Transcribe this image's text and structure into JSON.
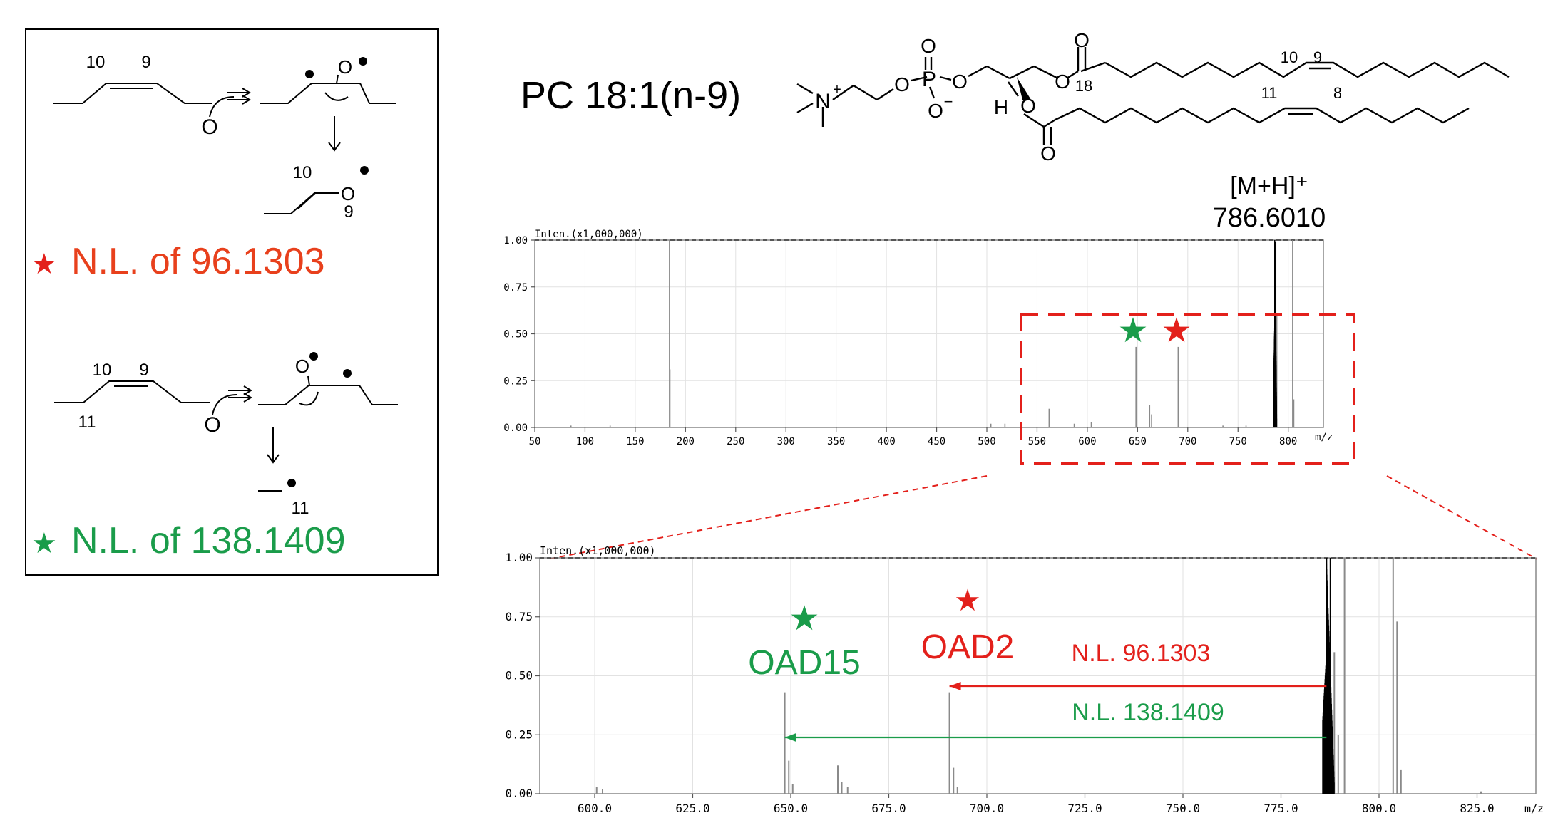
{
  "colors": {
    "red": "#e3201b",
    "orange_red": "#e8401c",
    "green": "#1a9c4a",
    "gray_peak": "#808080",
    "black": "#000000"
  },
  "mechanism_panel": {
    "top_labels": [
      "10",
      "9"
    ],
    "oxygen": "O",
    "product_labels": [
      "10",
      "9"
    ],
    "nl1_star": "★",
    "nl1_text": "N.L. of 96.1303",
    "bottom_labels": [
      "10",
      "9",
      "11"
    ],
    "bottom_product_label": "11",
    "nl2_star": "★",
    "nl2_text": "N.L. of 138.1409"
  },
  "structure": {
    "title": "PC 18:1(n-9)",
    "atom_N": "N",
    "charge_plus": "+",
    "atom_O": "O",
    "atom_P": "P",
    "charge_minus": "−",
    "atom_H": "H",
    "chain_labels": [
      "18",
      "10",
      "9",
      "11",
      "8"
    ]
  },
  "precursor": {
    "label": "[M+H]⁺",
    "mz": "786.6010"
  },
  "annotations": {
    "oad15": "OAD15",
    "oad2": "OAD2",
    "nl_red": "N.L. 96.1303",
    "nl_green": "N.L. 138.1409",
    "star": "★"
  },
  "chart_data": [
    {
      "type": "bar",
      "name": "full-spectrum",
      "title": "Inten.(x1,000,000)",
      "xlabel": "m/z",
      "ylabel": "Inten.(x1,000,000)",
      "xlim": [
        50,
        835
      ],
      "ylim": [
        0,
        1.0
      ],
      "xticks": [
        "50",
        "100",
        "150",
        "200",
        "250",
        "300",
        "350",
        "400",
        "450",
        "500",
        "550",
        "600",
        "650",
        "700",
        "750",
        "800"
      ],
      "yticks": [
        "0.00",
        "0.25",
        "0.50",
        "0.75",
        "1.00"
      ],
      "peaks": [
        {
          "x": 184.07,
          "y": 1.0
        },
        {
          "x": 184.5,
          "y": 0.31
        },
        {
          "x": 125,
          "y": 0.01
        },
        {
          "x": 86,
          "y": 0.01
        },
        {
          "x": 504,
          "y": 0.02
        },
        {
          "x": 518,
          "y": 0.02
        },
        {
          "x": 562,
          "y": 0.1
        },
        {
          "x": 587,
          "y": 0.02
        },
        {
          "x": 604,
          "y": 0.03
        },
        {
          "x": 648.47,
          "y": 0.43
        },
        {
          "x": 662,
          "y": 0.12
        },
        {
          "x": 664,
          "y": 0.07
        },
        {
          "x": 690.47,
          "y": 0.43
        },
        {
          "x": 735,
          "y": 0.01
        },
        {
          "x": 758,
          "y": 0.01
        },
        {
          "x": 786.6,
          "y": 1.0
        },
        {
          "x": 787.6,
          "y": 0.99
        },
        {
          "x": 788.6,
          "y": 0.6
        },
        {
          "x": 804.4,
          "y": 1.0
        },
        {
          "x": 805.5,
          "y": 0.15
        }
      ]
    },
    {
      "type": "bar",
      "name": "zoom-spectrum",
      "title": "Inten.(x1,000,000)",
      "xlabel": "m/z",
      "ylabel": "Inten.(x1,000,000)",
      "xlim": [
        586,
        840
      ],
      "ylim": [
        0,
        1.0
      ],
      "xticks": [
        "600.0",
        "625.0",
        "650.0",
        "675.0",
        "700.0",
        "725.0",
        "750.0",
        "775.0",
        "800.0",
        "825.0"
      ],
      "yticks": [
        "0.00",
        "0.25",
        "0.50",
        "0.75",
        "1.00"
      ],
      "peaks": [
        {
          "x": 600.5,
          "y": 0.03
        },
        {
          "x": 602,
          "y": 0.02
        },
        {
          "x": 648.47,
          "y": 0.43
        },
        {
          "x": 649.5,
          "y": 0.14
        },
        {
          "x": 650.5,
          "y": 0.04
        },
        {
          "x": 662.0,
          "y": 0.12
        },
        {
          "x": 663.0,
          "y": 0.05
        },
        {
          "x": 664.5,
          "y": 0.03
        },
        {
          "x": 690.47,
          "y": 0.43
        },
        {
          "x": 691.5,
          "y": 0.11
        },
        {
          "x": 692.5,
          "y": 0.03
        },
        {
          "x": 786.6,
          "y": 1.0
        },
        {
          "x": 787.6,
          "y": 1.0
        },
        {
          "x": 788.6,
          "y": 0.6
        },
        {
          "x": 789.6,
          "y": 0.25
        },
        {
          "x": 791.2,
          "y": 1.0
        },
        {
          "x": 803.6,
          "y": 1.0
        },
        {
          "x": 804.6,
          "y": 0.73
        },
        {
          "x": 805.6,
          "y": 0.1
        },
        {
          "x": 826,
          "y": 0.01
        }
      ]
    }
  ]
}
